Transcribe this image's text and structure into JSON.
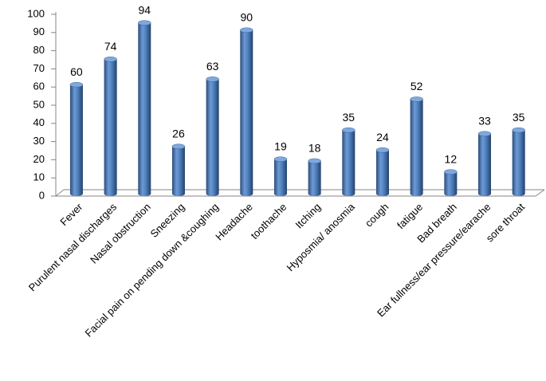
{
  "chart_data": {
    "type": "bar",
    "categories": [
      "Fever",
      "Purulent nasal discharges",
      "Nasal obstruction",
      "Sneezing",
      "Facial pain on pending down &coughing",
      "Headache",
      "toothache",
      "Itching",
      "Hyposmia/ anosmia",
      "cough",
      "fatigue",
      "Bad breath",
      "Ear fullness/ear pressure/earache",
      "sore throat"
    ],
    "values": [
      60,
      74,
      94,
      26,
      63,
      90,
      19,
      18,
      35,
      24,
      52,
      12,
      33,
      35
    ],
    "color": "#4f81bd",
    "ylim": [
      0,
      100
    ],
    "yticks": [
      0,
      10,
      20,
      30,
      40,
      50,
      60,
      70,
      80,
      90,
      100
    ],
    "grid": false
  }
}
